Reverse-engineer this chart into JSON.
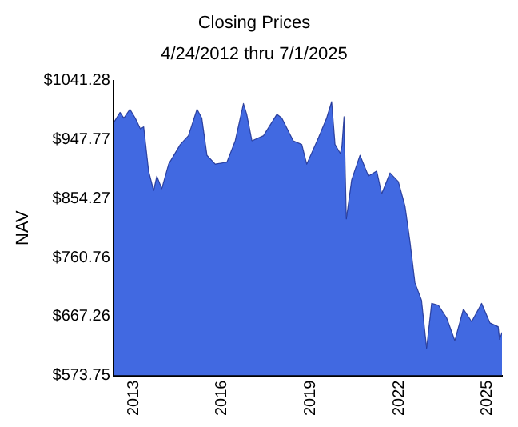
{
  "chart_data": {
    "type": "area",
    "title": "Closing Prices",
    "subtitle": "4/24/2012 thru 7/1/2025",
    "ylabel": "NAV",
    "x": [
      "2012-04-24",
      "2012-07-15",
      "2012-09-01",
      "2012-11-15",
      "2013-01-20",
      "2013-03-25",
      "2013-05-05",
      "2013-07-05",
      "2013-09-05",
      "2013-10-15",
      "2013-12-15",
      "2014-03-10",
      "2014-08-01",
      "2014-11-10",
      "2015-02-25",
      "2015-04-25",
      "2015-06-28",
      "2015-10-08",
      "2016-03-01",
      "2016-06-12",
      "2016-09-22",
      "2016-11-02",
      "2017-01-05",
      "2017-05-28",
      "2017-11-10",
      "2018-01-10",
      "2018-06-01",
      "2018-09-15",
      "2018-11-15",
      "2019-04-10",
      "2019-07-20",
      "2019-09-20",
      "2019-11-01",
      "2020-01-05",
      "2020-01-25",
      "2020-02-20",
      "2020-03-20",
      "2020-05-25",
      "2020-09-05",
      "2020-12-20",
      "2021-04-01",
      "2021-06-01",
      "2021-09-12",
      "2021-12-25",
      "2022-03-18",
      "2022-05-18",
      "2022-07-18",
      "2022-10-08",
      "2022-12-10",
      "2023-02-10",
      "2023-05-05",
      "2023-08-15",
      "2023-11-25",
      "2024-03-10",
      "2024-06-20",
      "2024-10-22",
      "2025-02-01",
      "2025-05-15",
      "2025-06-01",
      "2025-07-01"
    ],
    "series": [
      {
        "color": "#4169e1",
        "values": [
          974,
          991,
          982,
          996,
          982,
          965,
          968,
          898,
          867,
          890,
          870,
          909,
          940,
          954,
          996,
          982,
          923,
          909,
          912,
          946,
          1005,
          988,
          946,
          954,
          988,
          982,
          946,
          940,
          909,
          951,
          982,
          1008,
          940,
          926,
          937,
          984,
          822,
          884,
          923,
          890,
          898,
          862,
          895,
          881,
          842,
          786,
          721,
          693,
          617,
          688,
          685,
          665,
          629,
          679,
          659,
          688,
          657,
          651,
          631,
          642
        ]
      }
    ],
    "xlim": [
      "2012-04-24",
      "2025-07-01"
    ],
    "xticks": [
      "2013",
      "2016",
      "2019",
      "2022",
      "2025"
    ],
    "ylim": [
      573.75,
      1041.28
    ],
    "yticks": [
      {
        "value": 573.75,
        "label": "$573.75"
      },
      {
        "value": 667.26,
        "label": "$667.26"
      },
      {
        "value": 760.76,
        "label": "$760.76"
      },
      {
        "value": 854.27,
        "label": "$854.27"
      },
      {
        "value": 947.77,
        "label": "$947.77"
      },
      {
        "value": 1041.28,
        "label": "$1041.28"
      }
    ],
    "grid": false
  }
}
